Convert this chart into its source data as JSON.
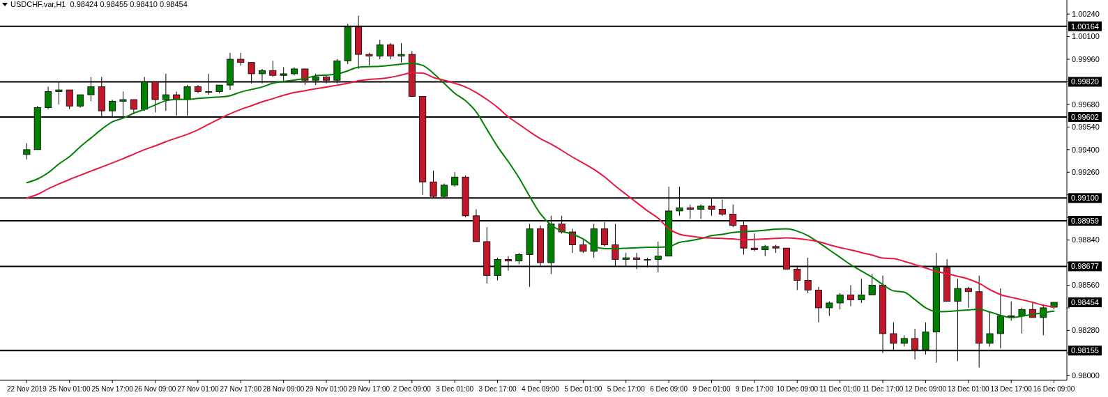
{
  "chart_data": {
    "type": "candlestick",
    "title": "USDCHF.var,H1  0.98424 0.98455 0.98410 0.98454",
    "categories": [
      "22 Nov 2019",
      null,
      null,
      null,
      "25 Nov 01:00",
      null,
      null,
      null,
      "25 Nov 17:00",
      null,
      null,
      null,
      "26 Nov 09:00",
      null,
      null,
      null,
      "27 Nov 01:00",
      null,
      null,
      null,
      "27 Nov 17:00",
      null,
      null,
      null,
      "28 Nov 09:00",
      null,
      null,
      null,
      "29 Nov 01:00",
      null,
      null,
      null,
      "29 Nov 17:00",
      null,
      null,
      null,
      "2 Dec 09:00",
      null,
      null,
      null,
      "3 Dec 01:00",
      null,
      null,
      null,
      "3 Dec 17:00",
      null,
      null,
      null,
      "4 Dec 09:00",
      null,
      null,
      null,
      "5 Dec 01:00",
      null,
      null,
      null,
      "5 Dec 17:00",
      null,
      null,
      null,
      "6 Dec 09:00",
      null,
      null,
      null,
      "9 Dec 01:00",
      null,
      null,
      null,
      "9 Dec 17:00",
      null,
      null,
      null,
      "10 Dec 09:00",
      null,
      null,
      null,
      "11 Dec 01:00",
      null,
      null,
      null,
      "11 Dec 17:00",
      null,
      null,
      null,
      "12 Dec 09:00",
      null,
      null,
      null,
      "13 Dec 01:00",
      null,
      null,
      null,
      "13 Dec 17:00",
      null,
      null,
      null,
      "16 Dec 09:00"
    ],
    "ohlc": [
      [
        0.9937,
        0.9944,
        0.9934,
        0.994
      ],
      [
        0.994,
        0.9967,
        0.994,
        0.9966
      ],
      [
        0.9966,
        0.9979,
        0.9965,
        0.9976
      ],
      [
        0.9976,
        0.9982,
        0.9968,
        0.9977
      ],
      [
        0.9977,
        0.9977,
        0.9965,
        0.9967
      ],
      [
        0.9967,
        0.9974,
        0.9966,
        0.9974
      ],
      [
        0.9974,
        0.9985,
        0.997,
        0.9979
      ],
      [
        0.9979,
        0.9985,
        0.996,
        0.9964
      ],
      [
        0.9964,
        0.9971,
        0.996,
        0.997
      ],
      [
        0.997,
        0.9976,
        0.996,
        0.9971
      ],
      [
        0.9971,
        0.9971,
        0.9962,
        0.9965
      ],
      [
        0.9965,
        0.9985,
        0.9964,
        0.9982
      ],
      [
        0.9982,
        0.9982,
        0.9963,
        0.9971
      ],
      [
        0.9971,
        0.9987,
        0.9964,
        0.9974
      ],
      [
        0.9974,
        0.9976,
        0.9961,
        0.9971
      ],
      [
        0.9971,
        0.998,
        0.9961,
        0.9979
      ],
      [
        0.9979,
        0.998,
        0.9975,
        0.9976
      ],
      [
        0.9976,
        0.9987,
        0.9974,
        0.9976
      ],
      [
        0.9976,
        0.998,
        0.9975,
        0.998
      ],
      [
        0.998,
        1.0,
        0.9977,
        0.9996
      ],
      [
        0.9996,
        1.0,
        0.9992,
        0.9994
      ],
      [
        0.9994,
        0.9994,
        0.9981,
        0.9987
      ],
      [
        0.9987,
        0.999,
        0.9981,
        0.9989
      ],
      [
        0.9989,
        0.9995,
        0.9985,
        0.9986
      ],
      [
        0.9986,
        0.9991,
        0.9982,
        0.9987
      ],
      [
        0.9987,
        0.9991,
        0.9986,
        0.999
      ],
      [
        0.999,
        0.999,
        0.998,
        0.9983
      ],
      [
        0.9983,
        0.9987,
        0.998,
        0.9985
      ],
      [
        0.9985,
        0.9986,
        0.9981,
        0.9983
      ],
      [
        0.9983,
        0.9996,
        0.9981,
        0.9995
      ],
      [
        0.9995,
        1.0018,
        0.9993,
        1.0016
      ],
      [
        1.0016,
        1.0023,
        0.999,
        0.9999
      ],
      [
        0.9999,
        1.0,
        0.9992,
        0.9998
      ],
      [
        0.9998,
        1.0008,
        0.9996,
        1.0005
      ],
      [
        1.0005,
        1.0006,
        0.9996,
        0.9998
      ],
      [
        0.9998,
        1.0006,
        0.9994,
        0.9999
      ],
      [
        0.9999,
        1.0001,
        0.9973,
        0.9973
      ],
      [
        0.9973,
        0.9973,
        0.9912,
        0.992
      ],
      [
        0.992,
        0.9927,
        0.991,
        0.9911
      ],
      [
        0.9911,
        0.9919,
        0.991,
        0.9918
      ],
      [
        0.9918,
        0.9926,
        0.9917,
        0.9923
      ],
      [
        0.9923,
        0.9924,
        0.9898,
        0.9899
      ],
      [
        0.9899,
        0.9903,
        0.9883,
        0.9883
      ],
      [
        0.9883,
        0.9892,
        0.9857,
        0.9862
      ],
      [
        0.9862,
        0.9873,
        0.9859,
        0.9872
      ],
      [
        0.9872,
        0.9874,
        0.9865,
        0.9871
      ],
      [
        0.9871,
        0.9876,
        0.9869,
        0.9875
      ],
      [
        0.9875,
        0.9894,
        0.9855,
        0.9891
      ],
      [
        0.9891,
        0.9893,
        0.9868,
        0.987
      ],
      [
        0.987,
        0.9899,
        0.9863,
        0.9894
      ],
      [
        0.9894,
        0.9899,
        0.9888,
        0.9889
      ],
      [
        0.9889,
        0.9891,
        0.9876,
        0.9881
      ],
      [
        0.9881,
        0.9884,
        0.9876,
        0.9877
      ],
      [
        0.9877,
        0.9894,
        0.9873,
        0.9891
      ],
      [
        0.9891,
        0.9895,
        0.988,
        0.9881
      ],
      [
        0.9881,
        0.9894,
        0.9868,
        0.9872
      ],
      [
        0.9872,
        0.9876,
        0.9868,
        0.9873
      ],
      [
        0.9873,
        0.9876,
        0.9866,
        0.9872
      ],
      [
        0.9872,
        0.9873,
        0.9867,
        0.9872
      ],
      [
        0.9872,
        0.9883,
        0.9864,
        0.9874
      ],
      [
        0.9874,
        0.9917,
        0.9874,
        0.9902
      ],
      [
        0.9902,
        0.9917,
        0.9899,
        0.9904
      ],
      [
        0.9904,
        0.9906,
        0.9897,
        0.9903
      ],
      [
        0.9903,
        0.9906,
        0.9897,
        0.9905
      ],
      [
        0.9905,
        0.991,
        0.9899,
        0.9903
      ],
      [
        0.9903,
        0.9909,
        0.9899,
        0.99
      ],
      [
        0.99,
        0.9906,
        0.9892,
        0.9893
      ],
      [
        0.9893,
        0.9896,
        0.9875,
        0.9879
      ],
      [
        0.9879,
        0.9888,
        0.9877,
        0.9878
      ],
      [
        0.9878,
        0.9881,
        0.9874,
        0.988
      ],
      [
        0.988,
        0.9881,
        0.9876,
        0.9879
      ],
      [
        0.9879,
        0.9879,
        0.9866,
        0.9866
      ],
      [
        0.9866,
        0.9868,
        0.9853,
        0.9859
      ],
      [
        0.9859,
        0.9873,
        0.9851,
        0.9853
      ],
      [
        0.9853,
        0.9855,
        0.9833,
        0.9842
      ],
      [
        0.9842,
        0.9846,
        0.9837,
        0.9845
      ],
      [
        0.9845,
        0.9851,
        0.9841,
        0.985
      ],
      [
        0.985,
        0.9856,
        0.9843,
        0.9847
      ],
      [
        0.9847,
        0.986,
        0.9845,
        0.985
      ],
      [
        0.985,
        0.9863,
        0.985,
        0.9856
      ],
      [
        0.9856,
        0.9862,
        0.9814,
        0.9826
      ],
      [
        0.9826,
        0.9833,
        0.9816,
        0.982
      ],
      [
        0.982,
        0.9825,
        0.9818,
        0.9823
      ],
      [
        0.9823,
        0.9829,
        0.981,
        0.9816
      ],
      [
        0.9816,
        0.9833,
        0.9813,
        0.9827
      ],
      [
        0.9827,
        0.9876,
        0.9808,
        0.9867
      ],
      [
        0.9867,
        0.9872,
        0.9846,
        0.9846
      ],
      [
        0.9846,
        0.986,
        0.9809,
        0.9854
      ],
      [
        0.9854,
        0.9855,
        0.9842,
        0.9852
      ],
      [
        0.9852,
        0.9862,
        0.9805,
        0.982
      ],
      [
        0.982,
        0.9839,
        0.9818,
        0.9826
      ],
      [
        0.9826,
        0.9854,
        0.9817,
        0.9837
      ],
      [
        0.9837,
        0.9846,
        0.9834,
        0.9837
      ],
      [
        0.9837,
        0.9842,
        0.9826,
        0.9841
      ],
      [
        0.9841,
        0.9845,
        0.9836,
        0.9836
      ],
      [
        0.9836,
        0.9844,
        0.9825,
        0.9842
      ],
      [
        0.98424,
        0.98455,
        0.9841,
        0.98454
      ]
    ],
    "series": [
      {
        "type": "line",
        "color": "#008000",
        "values": [
          0.99195,
          0.99218,
          0.99257,
          0.99311,
          0.99357,
          0.99418,
          0.99472,
          0.99526,
          0.99572,
          0.99595,
          0.99626,
          0.99649,
          0.99677,
          0.99703,
          0.99711,
          0.99711,
          0.99717,
          0.99722,
          0.99726,
          0.99734,
          0.99757,
          0.99773,
          0.99788,
          0.99811,
          0.99822,
          0.99831,
          0.99842,
          0.99857,
          0.99862,
          0.99868,
          0.99888,
          0.99911,
          0.99914,
          0.99916,
          0.99922,
          0.9993,
          0.99934,
          0.99922,
          0.99873,
          0.99811,
          0.99749,
          0.99703,
          0.99634,
          0.99526,
          0.99418,
          0.99326,
          0.99226,
          0.9911,
          0.99003,
          0.98933,
          0.98895,
          0.98876,
          0.98846,
          0.98802,
          0.98787,
          0.98787,
          0.98789,
          0.98792,
          0.98795,
          0.98795,
          0.98799,
          0.98825,
          0.98836,
          0.98849,
          0.98867,
          0.98875,
          0.98887,
          0.98892,
          0.98895,
          0.98901,
          0.98907,
          0.98909,
          0.98895,
          0.98867,
          0.98825,
          0.98779,
          0.98733,
          0.98687,
          0.98648,
          0.9861,
          0.98564,
          0.98525,
          0.98517,
          0.98471,
          0.9842,
          0.98396,
          0.98397,
          0.98402,
          0.98407,
          0.98411,
          0.98394,
          0.98374,
          0.98359,
          0.98368,
          0.98379,
          0.9839,
          0.98399
        ]
      },
      {
        "type": "line",
        "color": "#e8173f",
        "values": [
          0.991,
          0.99123,
          0.99157,
          0.99187,
          0.99215,
          0.99241,
          0.99267,
          0.99292,
          0.99318,
          0.99344,
          0.99372,
          0.994,
          0.99423,
          0.99449,
          0.99472,
          0.99495,
          0.99523,
          0.99557,
          0.99591,
          0.99622,
          0.99649,
          0.99672,
          0.99696,
          0.99716,
          0.99737,
          0.99754,
          0.99765,
          0.99777,
          0.99788,
          0.99799,
          0.99811,
          0.99826,
          0.99835,
          0.99839,
          0.99848,
          0.99862,
          0.99876,
          0.99874,
          0.99847,
          0.9983,
          0.99811,
          0.99788,
          0.99754,
          0.99711,
          0.99662,
          0.99603,
          0.99557,
          0.99511,
          0.99468,
          0.99434,
          0.99395,
          0.99354,
          0.99317,
          0.99278,
          0.99231,
          0.99175,
          0.99123,
          0.99072,
          0.99021,
          0.98975,
          0.9891,
          0.98876,
          0.98864,
          0.98856,
          0.98852,
          0.9885,
          0.98847,
          0.98841,
          0.98844,
          0.98847,
          0.9885,
          0.98853,
          0.98849,
          0.98841,
          0.9883,
          0.9881,
          0.98793,
          0.98779,
          0.98762,
          0.98747,
          0.98728,
          0.98725,
          0.98708,
          0.98688,
          0.98667,
          0.98645,
          0.98631,
          0.98615,
          0.98598,
          0.98571,
          0.98533,
          0.98502,
          0.98485,
          0.9847,
          0.98454,
          0.98436,
          0.98424
        ]
      }
    ],
    "ylim": [
      0.97971,
      1.00327
    ],
    "yticks": [
      {
        "value": 1.0024,
        "label": "1.00240"
      },
      {
        "value": 1.001,
        "label": "1.00100"
      },
      {
        "value": 0.9996,
        "label": "0.99960"
      },
      {
        "value": 0.9982,
        "label": null
      },
      {
        "value": 0.9968,
        "label": "0.99680"
      },
      {
        "value": 0.9954,
        "label": "0.99540"
      },
      {
        "value": 0.994,
        "label": "0.99400"
      },
      {
        "value": 0.9926,
        "label": "0.99260"
      },
      {
        "value": 0.9912,
        "label": null
      },
      {
        "value": 0.9898,
        "label": null
      },
      {
        "value": 0.9884,
        "label": "0.98840"
      },
      {
        "value": 0.987,
        "label": null
      },
      {
        "value": 0.9856,
        "label": "0.98560"
      },
      {
        "value": 0.9842,
        "label": null
      },
      {
        "value": 0.9828,
        "label": "0.98280"
      },
      {
        "value": 0.9814,
        "label": null
      },
      {
        "value": 0.98,
        "label": "0.98000"
      }
    ],
    "ref_lines": [
      {
        "axis": "y",
        "value": 1.00164,
        "label": "1.00164"
      },
      {
        "axis": "y",
        "value": 0.9982,
        "label": "0.99820"
      },
      {
        "axis": "y",
        "value": 0.99602,
        "label": "0.99602"
      },
      {
        "axis": "y",
        "value": 0.991,
        "label": "0.99100"
      },
      {
        "axis": "y",
        "value": 0.98959,
        "label": "0.98959"
      },
      {
        "axis": "y",
        "value": 0.98677,
        "label": "0.98677"
      },
      {
        "axis": "y",
        "value": 0.98155,
        "label": "0.98155"
      }
    ],
    "annotations": [
      "0.98454"
    ]
  }
}
